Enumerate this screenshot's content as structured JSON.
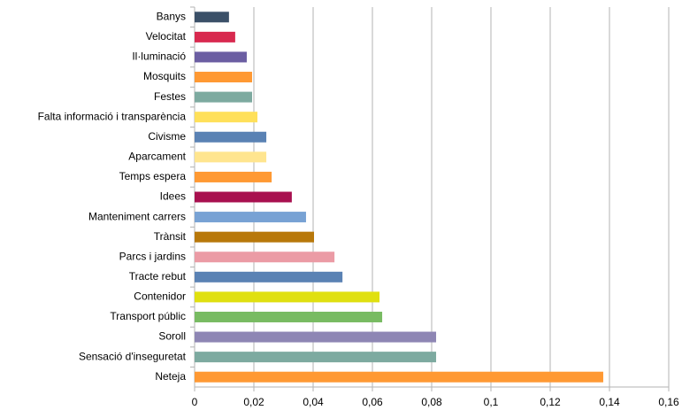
{
  "chart_data": {
    "type": "bar",
    "orientation": "horizontal",
    "categories": [
      "Banys",
      "Velocitat",
      "Il·luminació",
      "Mosquits",
      "Festes",
      "Falta informació i transparència",
      "Civisme",
      "Aparcament",
      "Temps espera",
      "Idees",
      "Manteniment carrers",
      "Trànsit",
      "Parcs i jardins",
      "Tracte rebut",
      "Contenidor",
      "Transport públic",
      "Soroll",
      "Sensació d'inseguretat",
      "Neteja"
    ],
    "values": [
      0.0116,
      0.0137,
      0.0176,
      0.0194,
      0.0194,
      0.0212,
      0.0242,
      0.0242,
      0.026,
      0.0328,
      0.0376,
      0.0403,
      0.0472,
      0.0499,
      0.0624,
      0.0633,
      0.0815,
      0.0815,
      0.1379
    ],
    "colors": [
      "#3b5068",
      "#d8294f",
      "#6b5ea2",
      "#ff9933",
      "#7daaa0",
      "#ffe05a",
      "#5a82b4",
      "#ffe58f",
      "#ff9933",
      "#a8104f",
      "#78a2d4",
      "#b8780a",
      "#eb9ba5",
      "#5a82b4",
      "#e0e010",
      "#78bb62",
      "#8e86b4",
      "#7daaa0",
      "#ff9933"
    ],
    "xlim": [
      0,
      0.16
    ],
    "xticks": [
      0,
      {
        "value": 0.02,
        "label": "0,02"
      },
      {
        "value": 0.04,
        "label": "0,04"
      },
      {
        "value": 0.06,
        "label": "0,06"
      },
      {
        "value": 0.08,
        "label": "0,08"
      },
      {
        "value": 0.1,
        "label": "0,1"
      },
      {
        "value": 0.12,
        "label": "0,12"
      },
      {
        "value": 0.14,
        "label": "0,14"
      },
      {
        "value": 0.16,
        "label": "0,16"
      }
    ],
    "grid": true
  }
}
